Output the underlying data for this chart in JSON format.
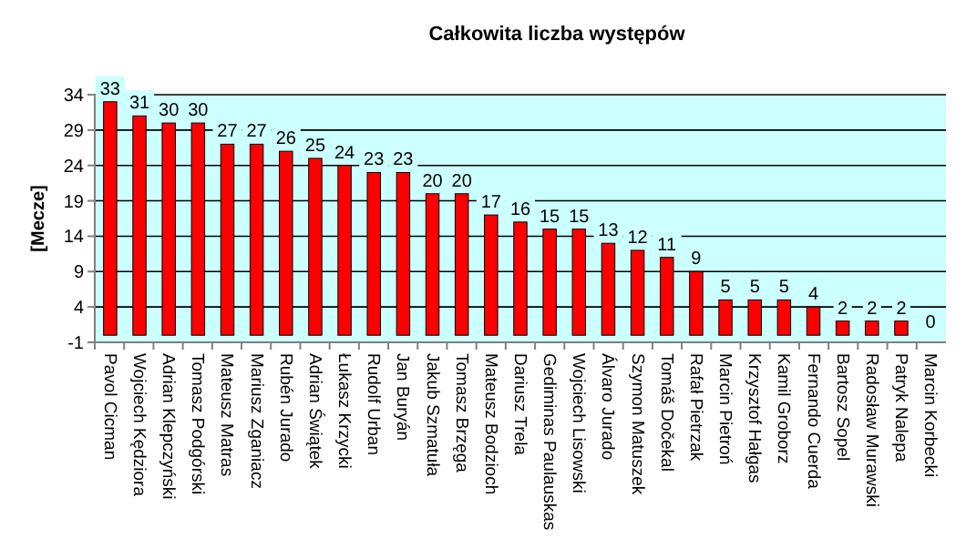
{
  "chart_data": {
    "type": "bar",
    "title": "Całkowita liczba występów",
    "ylabel": "[Mecze]",
    "categories": [
      "Pavol Cicman",
      "Wojciech Kędziora",
      "Adrian Klepczyński",
      "Tomasz Podgórski",
      "Mateusz Matras",
      "Mariusz Zganiacz",
      "Rubén Jurado",
      "Adrian Świątek",
      "Łukasz Krzycki",
      "Rudolf Urban",
      "Jan Buryán",
      "Jakub Szmatuła",
      "Tomasz Brzęga",
      "Mateusz Bodzioch",
      "Dariusz Trela",
      "Gediminas Paulauskas",
      "Wojciech Lisowski",
      "Álvaro Jurado",
      "Szymon Matuszek",
      "Tomáš Dočekal",
      "Rafał Pietrzak",
      "Marcin Pietroń",
      "Krzysztof Hałgas",
      "Kamil Groborz",
      "Fernando Cuerda",
      "Bartosz Sopel",
      "Radosław Murawski",
      "Patryk Nalepa",
      "Marcin Korbecki"
    ],
    "values": [
      33,
      31,
      30,
      30,
      27,
      27,
      26,
      25,
      24,
      23,
      23,
      20,
      20,
      17,
      16,
      15,
      15,
      13,
      12,
      11,
      9,
      5,
      5,
      5,
      4,
      2,
      2,
      2,
      0
    ],
    "color": "#ff0000",
    "data_labels": true,
    "grid": "y",
    "ylim": [
      -1,
      34
    ],
    "yticks": [
      -1,
      4,
      9,
      14,
      19,
      24,
      29,
      34
    ]
  }
}
